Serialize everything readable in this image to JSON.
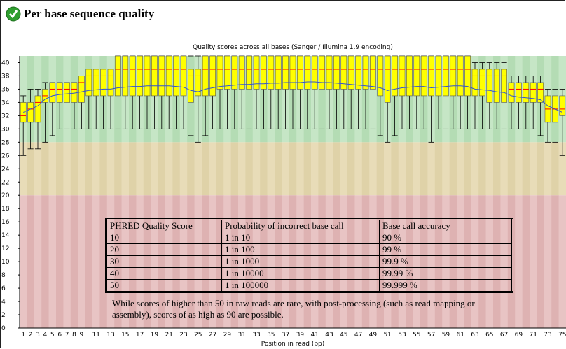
{
  "header": {
    "title": "Per base sequence quality"
  },
  "chart_data": {
    "type": "box",
    "title": "Quality scores across all bases (Sanger / Illumina 1.9 encoding)",
    "x_label": "Position in read (bp)",
    "categories": [
      1,
      2,
      3,
      4,
      5,
      6,
      7,
      8,
      9,
      null,
      11,
      null,
      13,
      null,
      15,
      null,
      17,
      null,
      19,
      null,
      21,
      null,
      23,
      null,
      25,
      null,
      27,
      null,
      29,
      null,
      31,
      null,
      33,
      null,
      35,
      null,
      37,
      null,
      39,
      null,
      41,
      null,
      43,
      null,
      45,
      null,
      47,
      null,
      49,
      null,
      51,
      null,
      53,
      null,
      55,
      null,
      57,
      null,
      59,
      null,
      61,
      null,
      63,
      null,
      65,
      null,
      67,
      null,
      69,
      null,
      71,
      null,
      73,
      null,
      75
    ],
    "whisker_low": [
      26,
      27,
      27,
      28,
      29,
      30,
      30,
      30,
      30,
      30,
      30,
      30,
      30,
      30,
      30,
      30,
      30,
      30,
      30,
      30,
      30,
      30,
      30,
      29,
      28,
      29,
      30,
      30,
      30,
      30,
      30,
      30,
      30,
      30,
      30,
      30,
      30,
      30,
      30,
      30,
      30,
      30,
      30,
      30,
      30,
      30,
      30,
      30,
      30,
      29,
      28,
      29,
      30,
      30,
      30,
      30,
      28,
      30,
      30,
      30,
      30,
      30,
      30,
      30,
      30,
      30,
      30,
      30,
      30,
      30,
      30,
      29,
      28,
      28,
      26
    ],
    "q1": [
      31,
      31,
      31,
      34,
      34,
      34,
      34,
      34,
      34,
      35,
      35,
      35,
      35,
      35,
      35,
      35,
      35,
      35,
      35,
      35,
      35,
      35,
      35,
      34,
      35,
      35,
      35,
      36,
      36,
      36,
      36,
      36,
      36,
      36,
      36,
      36,
      36,
      36,
      36,
      36,
      36,
      36,
      36,
      36,
      36,
      36,
      36,
      36,
      36,
      35,
      34,
      35,
      35,
      35,
      35,
      35,
      35,
      35,
      35,
      35,
      35,
      35,
      35,
      35,
      34,
      34,
      34,
      34,
      34,
      34,
      34,
      34,
      31,
      31,
      32
    ],
    "median": [
      32,
      33,
      34,
      35,
      36,
      36,
      36,
      36,
      37,
      38,
      38,
      38,
      38,
      39,
      39,
      39,
      39,
      39,
      39,
      39,
      39,
      39,
      39,
      38,
      38,
      39,
      39,
      39,
      39,
      39,
      39,
      39,
      39,
      39,
      39,
      39,
      39,
      39,
      39,
      39,
      39,
      39,
      39,
      39,
      39,
      39,
      39,
      39,
      39,
      39,
      39,
      39,
      39,
      39,
      39,
      39,
      39,
      39,
      39,
      39,
      39,
      39,
      38,
      38,
      38,
      38,
      38,
      36,
      36,
      36,
      36,
      36,
      33,
      33,
      33
    ],
    "q3": [
      34,
      34,
      35,
      36,
      37,
      37,
      37,
      37,
      38,
      39,
      39,
      39,
      39,
      41,
      41,
      41,
      41,
      41,
      41,
      41,
      41,
      41,
      41,
      39,
      39,
      41,
      41,
      41,
      41,
      41,
      41,
      41,
      41,
      41,
      41,
      41,
      41,
      41,
      41,
      41,
      41,
      41,
      41,
      41,
      41,
      41,
      41,
      41,
      41,
      41,
      41,
      41,
      41,
      41,
      41,
      41,
      41,
      41,
      41,
      41,
      41,
      41,
      39,
      39,
      39,
      39,
      39,
      37,
      37,
      37,
      37,
      37,
      35,
      35,
      35
    ],
    "whisker_high": [
      35,
      36,
      36,
      37,
      37,
      37,
      37,
      37,
      38,
      39,
      39,
      39,
      39,
      41,
      41,
      41,
      41,
      41,
      41,
      41,
      41,
      41,
      41,
      41,
      41,
      41,
      41,
      41,
      41,
      41,
      41,
      41,
      41,
      41,
      41,
      41,
      41,
      41,
      41,
      41,
      41,
      41,
      41,
      41,
      41,
      41,
      41,
      41,
      41,
      41,
      41,
      41,
      41,
      41,
      41,
      41,
      41,
      41,
      41,
      41,
      41,
      41,
      40,
      40,
      40,
      40,
      40,
      38,
      38,
      38,
      38,
      38,
      36,
      36,
      36
    ],
    "mean": [
      32.5,
      33,
      33.5,
      34.5,
      35,
      35.2,
      35.3,
      35.4,
      35.6,
      35.8,
      35.9,
      36,
      36,
      36.2,
      36.3,
      36.4,
      36.4,
      36.5,
      36.5,
      36.5,
      36.5,
      36.4,
      36.3,
      35.8,
      35.6,
      36,
      36.2,
      36.4,
      36.5,
      36.6,
      36.7,
      36.7,
      36.8,
      36.8,
      36.9,
      36.9,
      37,
      37,
      37,
      37.1,
      37.1,
      37,
      37,
      36.9,
      36.8,
      36.7,
      36.6,
      36.5,
      36.4,
      36.2,
      35.8,
      36,
      36.2,
      36.3,
      36.4,
      36.4,
      36.2,
      36.3,
      36.4,
      36.5,
      36.5,
      36.4,
      36,
      35.9,
      35.8,
      35.6,
      35.5,
      35,
      34.8,
      34.7,
      34.6,
      34.4,
      33.5,
      33,
      32.5
    ],
    "ylim": [
      0,
      41
    ],
    "yticks": [
      0,
      2,
      4,
      6,
      8,
      10,
      12,
      14,
      16,
      18,
      20,
      22,
      24,
      26,
      28,
      30,
      32,
      34,
      36,
      38,
      40
    ],
    "box_color": "#ffff00",
    "median_color": "#ff0000",
    "mean_color": "#3355cc",
    "zones": [
      {
        "from": 28,
        "to": 41,
        "colors": [
          "#c6e6c6",
          "#b4dcb4"
        ]
      },
      {
        "from": 20,
        "to": 28,
        "colors": [
          "#e8dcb8",
          "#dfd2a8"
        ]
      },
      {
        "from": 0,
        "to": 20,
        "colors": [
          "#e8c4c4",
          "#deb2b2"
        ]
      }
    ]
  },
  "table": {
    "headers": [
      "PHRED Quality Score",
      "Probability of incorrect base call",
      "Base call accuracy"
    ],
    "rows": [
      [
        "10",
        "1 in 10",
        "90 %"
      ],
      [
        "20",
        "1 in 100",
        "99 %"
      ],
      [
        "30",
        "1 in 1000",
        "99.9 %"
      ],
      [
        "40",
        "1 in 10000",
        "99.99 %"
      ],
      [
        "50",
        "1 in 100000",
        "99.999 %"
      ]
    ],
    "note": "While scores of higher than 50 in raw reads are rare, with post-processing (such as read mapping or assembly), scores of as high as 90 are possible."
  }
}
